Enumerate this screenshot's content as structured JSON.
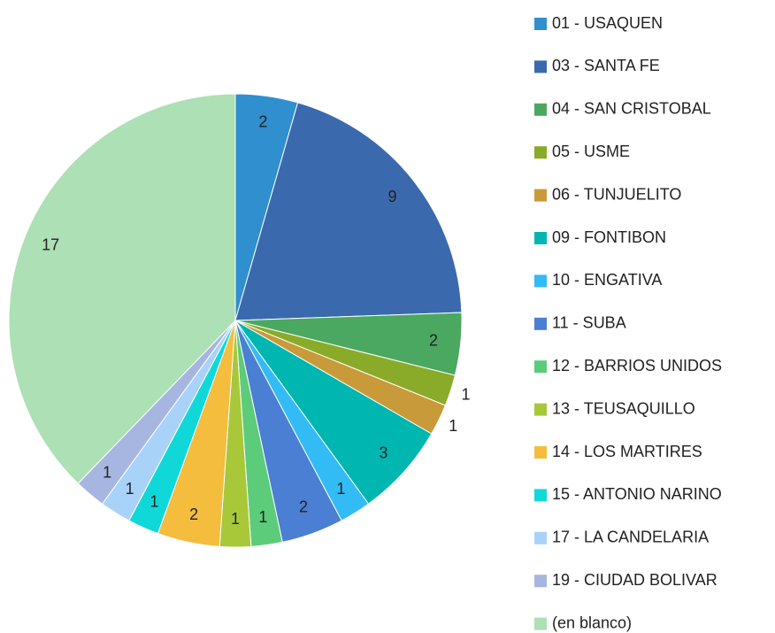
{
  "chart_data": {
    "type": "pie",
    "categories": [
      "01 - USAQUEN",
      "03 - SANTA FE",
      "04 - SAN CRISTOBAL",
      "05 - USME",
      "06 - TUNJUELITO",
      "09 - FONTIBON",
      "10 - ENGATIVA",
      "11 - SUBA",
      "12 - BARRIOS UNIDOS",
      "13 - TEUSAQUILLO",
      "14 - LOS MARTIRES",
      "15 - ANTONIO NARINO",
      "17 - LA CANDELARIA",
      "19 - CIUDAD BOLIVAR",
      "(en blanco)"
    ],
    "values": [
      2,
      9,
      2,
      1,
      1,
      3,
      1,
      2,
      1,
      1,
      2,
      1,
      1,
      1,
      17
    ],
    "colors": [
      "#2f8fcf",
      "#3a6aad",
      "#4aa860",
      "#8aab2a",
      "#c99a3a",
      "#00b6b0",
      "#33bbf5",
      "#4a7fd4",
      "#5ccc7a",
      "#a8c83a",
      "#f4bd3e",
      "#10d8d8",
      "#a9d2f8",
      "#a6b6e0",
      "#ade0b5"
    ],
    "legend": "right"
  }
}
